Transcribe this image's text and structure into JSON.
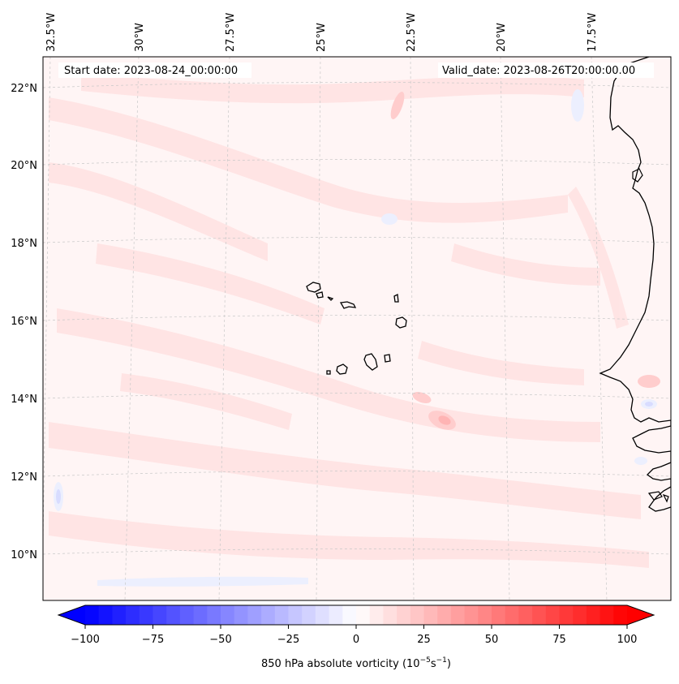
{
  "map": {
    "start_date": "Start date: 2023-08-24_00:00:00",
    "valid_date": "Valid_date: 2023-08-26T20:00:00.00",
    "lat_labels": [
      "22°N",
      "20°N",
      "18°N",
      "16°N",
      "14°N",
      "12°N",
      "10°N"
    ],
    "lon_labels": [
      "32.5°W",
      "30°W",
      "27.5°W",
      "25°W",
      "22.5°W",
      "20°W",
      "17.5°W"
    ],
    "field_colors": {
      "background": "#fff5f5",
      "light_red": "#ffe3e3",
      "mid_red": "#ffc8c8",
      "light_blue": "#eef0ff",
      "coast": "#000000",
      "grid": "#c8c8c8"
    }
  },
  "colorbar": {
    "label_main": "850 hPa absolute vorticity (10",
    "label_exp1": "−5",
    "label_mid": "s",
    "label_exp2": "−1",
    "label_end": ")",
    "ticks": [
      "−100",
      "−75",
      "−50",
      "−25",
      "0",
      "25",
      "50",
      "75",
      "100"
    ],
    "min_color": "#0000ff",
    "max_color": "#ff0000"
  }
}
